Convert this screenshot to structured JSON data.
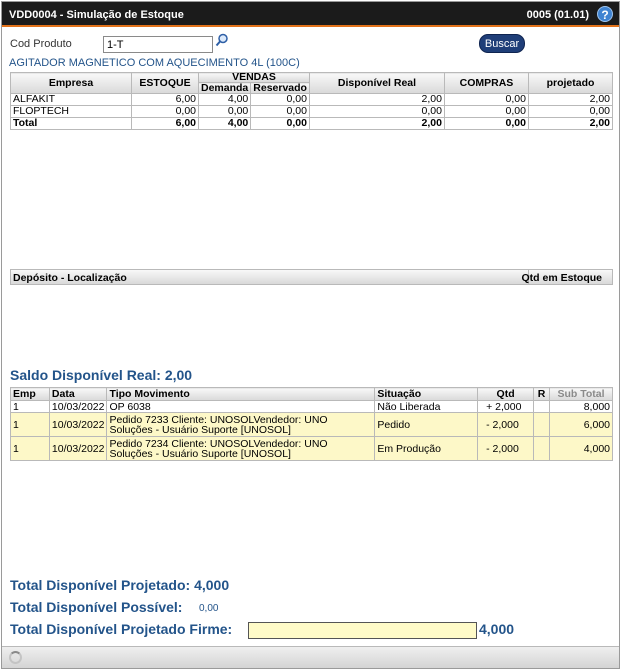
{
  "window": {
    "title": "VDD0004 - Simulação de Estoque",
    "version": "0005 (01.01)",
    "help_glyph": "?"
  },
  "search": {
    "label": "Cod Produto",
    "value": "1-T",
    "button_label": "Buscar"
  },
  "product_name": "AGITADOR MAGNETICO COM AQUECIMENTO 4L (100C)",
  "stock_table": {
    "headers": {
      "empresa": "Empresa",
      "estoque": "ESTOQUE",
      "vendas": "VENDAS",
      "demanda": "Demanda",
      "reservado": "Reservado",
      "disponivel": "Disponível Real",
      "compras": "COMPRAS",
      "projetado": "projetado"
    },
    "rows": [
      {
        "empresa": "ALFAKIT",
        "estoque": "6,00",
        "demanda": "4,00",
        "reservado": "0,00",
        "disponivel": "2,00",
        "compras": "0,00",
        "projetado": "2,00"
      },
      {
        "empresa": "FLOPTECH",
        "estoque": "0,00",
        "demanda": "0,00",
        "reservado": "0,00",
        "disponivel": "0,00",
        "compras": "0,00",
        "projetado": "0,00"
      },
      {
        "empresa": "Total",
        "estoque": "6,00",
        "demanda": "4,00",
        "reservado": "0,00",
        "disponivel": "2,00",
        "compras": "0,00",
        "projetado": "2,00"
      }
    ]
  },
  "deposit_header": {
    "location": "Depósito - Localização",
    "qty": "Qtd em Estoque"
  },
  "saldo": "Saldo Disponível Real: 2,00",
  "movements": {
    "headers": {
      "emp": "Emp",
      "data": "Data",
      "tipo": "Tipo Movimento",
      "situacao": "Situação",
      "qtd": "Qtd",
      "r": "R",
      "subtotal": "Sub Total"
    },
    "rows": [
      {
        "emp": "1",
        "data": "10/03/2022",
        "tipo": "OP 6038",
        "situacao": "Não Liberada",
        "qtd": "+ 2,000",
        "r": "",
        "subtotal": "8,000"
      },
      {
        "emp": "1",
        "data": "10/03/2022",
        "tipo": "Pedido 7233 Cliente: UNOSOLVendedor: UNO Soluções - Usuário Suporte [UNOSOL]",
        "situacao": "Pedido",
        "qtd": "- 2,000",
        "r": "",
        "subtotal": "6,000"
      },
      {
        "emp": "1",
        "data": "10/03/2022",
        "tipo": "Pedido 7234 Cliente: UNOSOLVendedor: UNO Soluções - Usuário Suporte [UNOSOL]",
        "situacao": "Em Produção",
        "qtd": "- 2,000",
        "r": "",
        "subtotal": "4,000"
      }
    ]
  },
  "totals": {
    "projetado": "Total Disponível Projetado: 4,000",
    "possivel_label": "Total Disponível Possível:",
    "possivel_value": "0,00",
    "firme_label": "Total Disponível Projetado Firme:",
    "firme_value": "4,000"
  },
  "colors": {
    "title_bg": "#1b1b1b",
    "accent": "#e2721a",
    "brand_blue": "#23548a",
    "highlight_yellow": "#fdf8c8"
  }
}
